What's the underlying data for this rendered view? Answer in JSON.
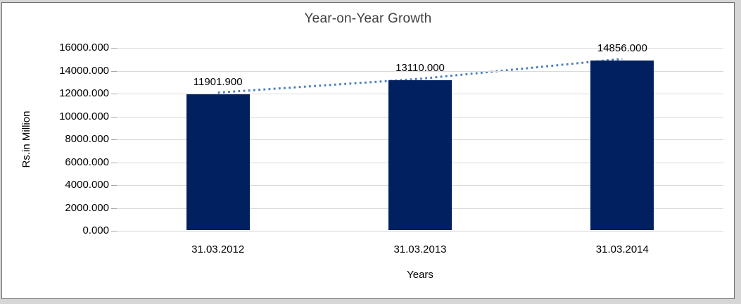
{
  "chart_data": {
    "type": "bar",
    "title": "Year-on-Year Growth",
    "xlabel": "Years",
    "ylabel": "Rs.in Million",
    "categories": [
      "31.03.2012",
      "31.03.2013",
      "31.03.2014"
    ],
    "values": [
      11901.9,
      13110.0,
      14856.0
    ],
    "value_labels": [
      "11901.900",
      "13110.000",
      "14856.000"
    ],
    "ylim": [
      0,
      16000
    ],
    "ytick_step": 2000,
    "ytick_values": [
      0,
      2000,
      4000,
      6000,
      8000,
      10000,
      12000,
      14000,
      16000
    ],
    "ytick_labels": [
      "0.000",
      "2000.000",
      "4000.000",
      "6000.000",
      "8000.000",
      "10000.000",
      "12000.000",
      "14000.000",
      "16000.000"
    ],
    "grid": true,
    "legend": false,
    "trendline": {
      "style": "dotted",
      "through": "bar-tops"
    },
    "colors": {
      "bar": "#002060",
      "trendline": "#4a7ebb",
      "gridline": "#d9d9d9",
      "tick": "#a6a6a6",
      "text": "#000000",
      "title_text": "#404040",
      "frame_background": "#d6d6d6",
      "panel_border": "#6e6e6e"
    }
  }
}
